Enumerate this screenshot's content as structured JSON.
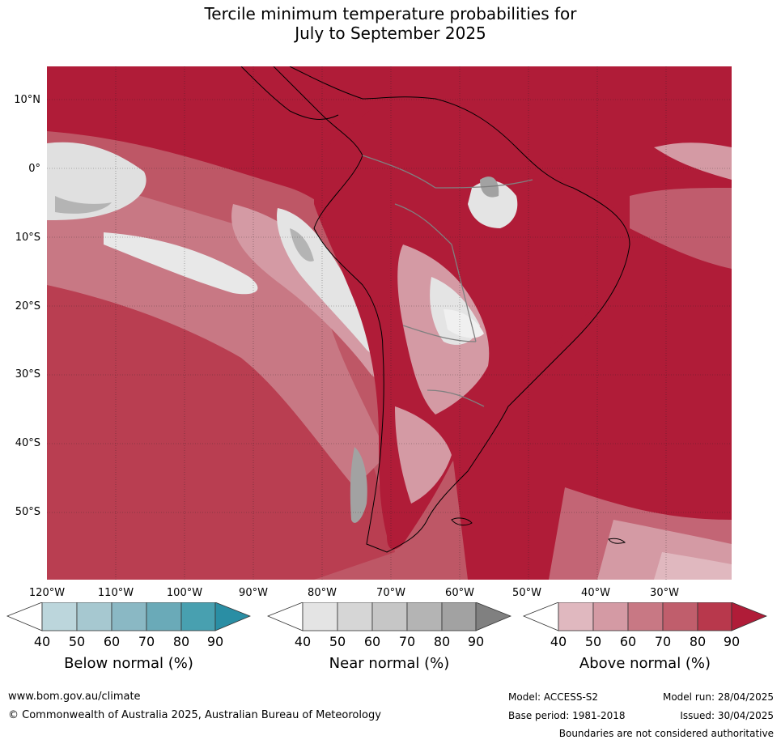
{
  "title": {
    "line1": "Tercile minimum temperature probabilities for",
    "line2": "July to September 2025"
  },
  "map": {
    "lat_labels": [
      "10°N",
      "0°",
      "10°S",
      "20°S",
      "30°S",
      "40°S",
      "50°S"
    ],
    "lon_labels": [
      "120°W",
      "110°W",
      "100°W",
      "90°W",
      "80°W",
      "70°W",
      "60°W",
      "50°W",
      "40°W",
      "30°W"
    ]
  },
  "colorbars": {
    "below": {
      "title": "Below normal (%)",
      "ticks": [
        "40",
        "50",
        "60",
        "70",
        "80",
        "90"
      ],
      "colors": [
        "#ffffff",
        "#bcd6dc",
        "#a6c8d0",
        "#8ab8c4",
        "#6aaab8",
        "#48a0b0",
        "#2a8ea4"
      ]
    },
    "near": {
      "title": "Near normal (%)",
      "ticks": [
        "40",
        "50",
        "60",
        "70",
        "80",
        "90"
      ],
      "colors": [
        "#ffffff",
        "#e4e4e4",
        "#d6d6d6",
        "#c6c6c6",
        "#b4b4b4",
        "#a2a2a2",
        "#808080"
      ]
    },
    "above": {
      "title": "Above normal (%)",
      "ticks": [
        "40",
        "50",
        "60",
        "70",
        "80",
        "90"
      ],
      "colors": [
        "#ffffff",
        "#e0b8bf",
        "#d49aa4",
        "#c87884",
        "#c05e6c",
        "#b8384c",
        "#b01c38"
      ]
    }
  },
  "footer": {
    "url": "www.bom.gov.au/climate",
    "copyright": "© Commonwealth of Australia 2025, Australian Bureau of Meteorology",
    "model": "Model: ACCESS-S2",
    "model_run": "Model run: 28/04/2025",
    "base_period": "Base period: 1981-2018",
    "issued": "Issued: 30/04/2025",
    "disclaimer": "Boundaries are not considered authoritative"
  }
}
